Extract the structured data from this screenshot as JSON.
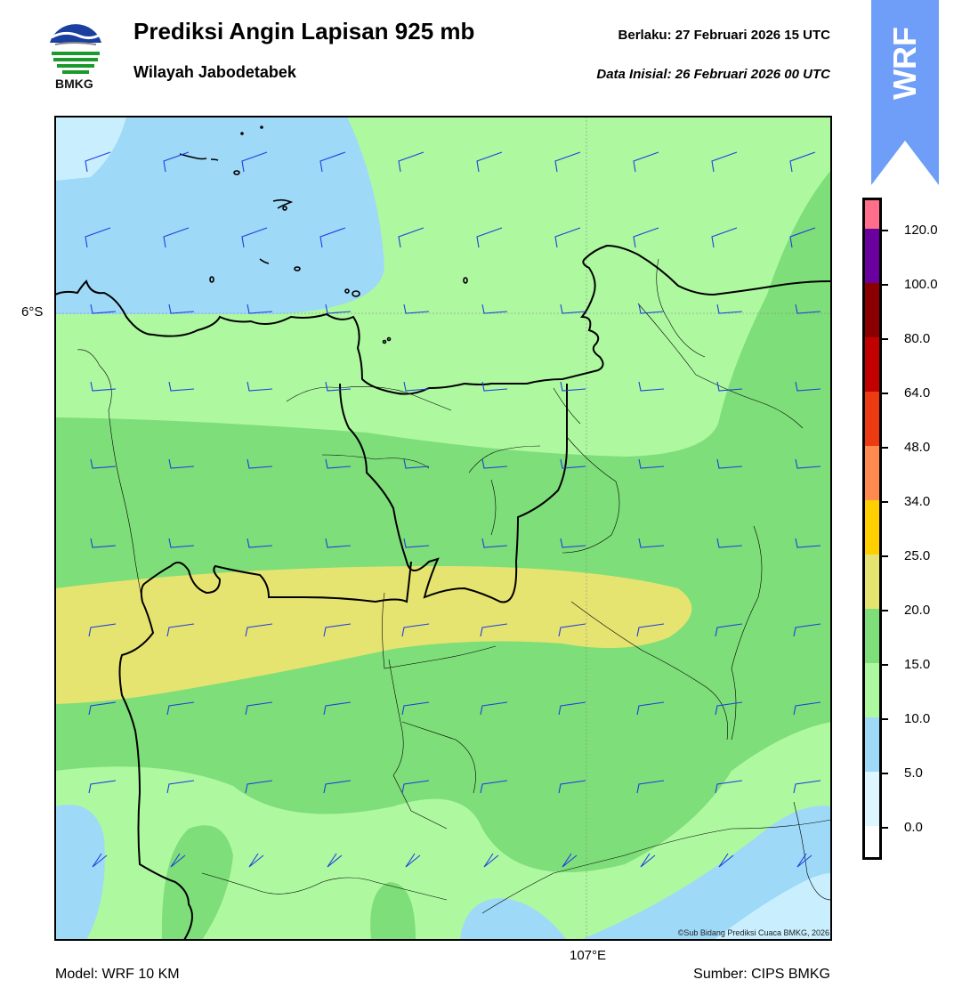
{
  "header": {
    "title": "Prediksi Angin Lapisan 925 mb",
    "subtitle": "Wilayah Jabodetabek",
    "valid": "Berlaku:  27 Februari 2026 15 UTC",
    "initial": "Data Inisial:  26 Februari 2026 00 UTC",
    "logo_text": "BMKG",
    "badge": "WRF"
  },
  "map": {
    "lat_label": "6°S",
    "lon_label": "107°E",
    "credit": "©Sub Bidang Prediksi Cuaca BMKG, 2026",
    "barb_color": "#1f3fe0",
    "fill_colors": {
      "0-5": "#c9efff",
      "5-10": "#9ed9f8",
      "10-15": "#aef8a0",
      "15-20": "#7ede79",
      "20-25": "#e6e470"
    }
  },
  "colorbar": {
    "labels": [
      "120.0",
      "100.0",
      "80.0",
      "64.0",
      "48.0",
      "34.0",
      "25.0",
      "20.0",
      "15.0",
      "10.0",
      "5.0",
      "0.0"
    ],
    "colors": [
      "#ffffff",
      "#ddf6ff",
      "#9ed9f8",
      "#aef8a0",
      "#7ede79",
      "#e6e470",
      "#ffcf00",
      "#ff8a4f",
      "#ec3b12",
      "#c20000",
      "#8a0000",
      "#6a009e",
      "#ff6e8a"
    ]
  },
  "footer": {
    "model": "Model: WRF 10 KM",
    "source": "Sumber: CIPS BMKG"
  }
}
